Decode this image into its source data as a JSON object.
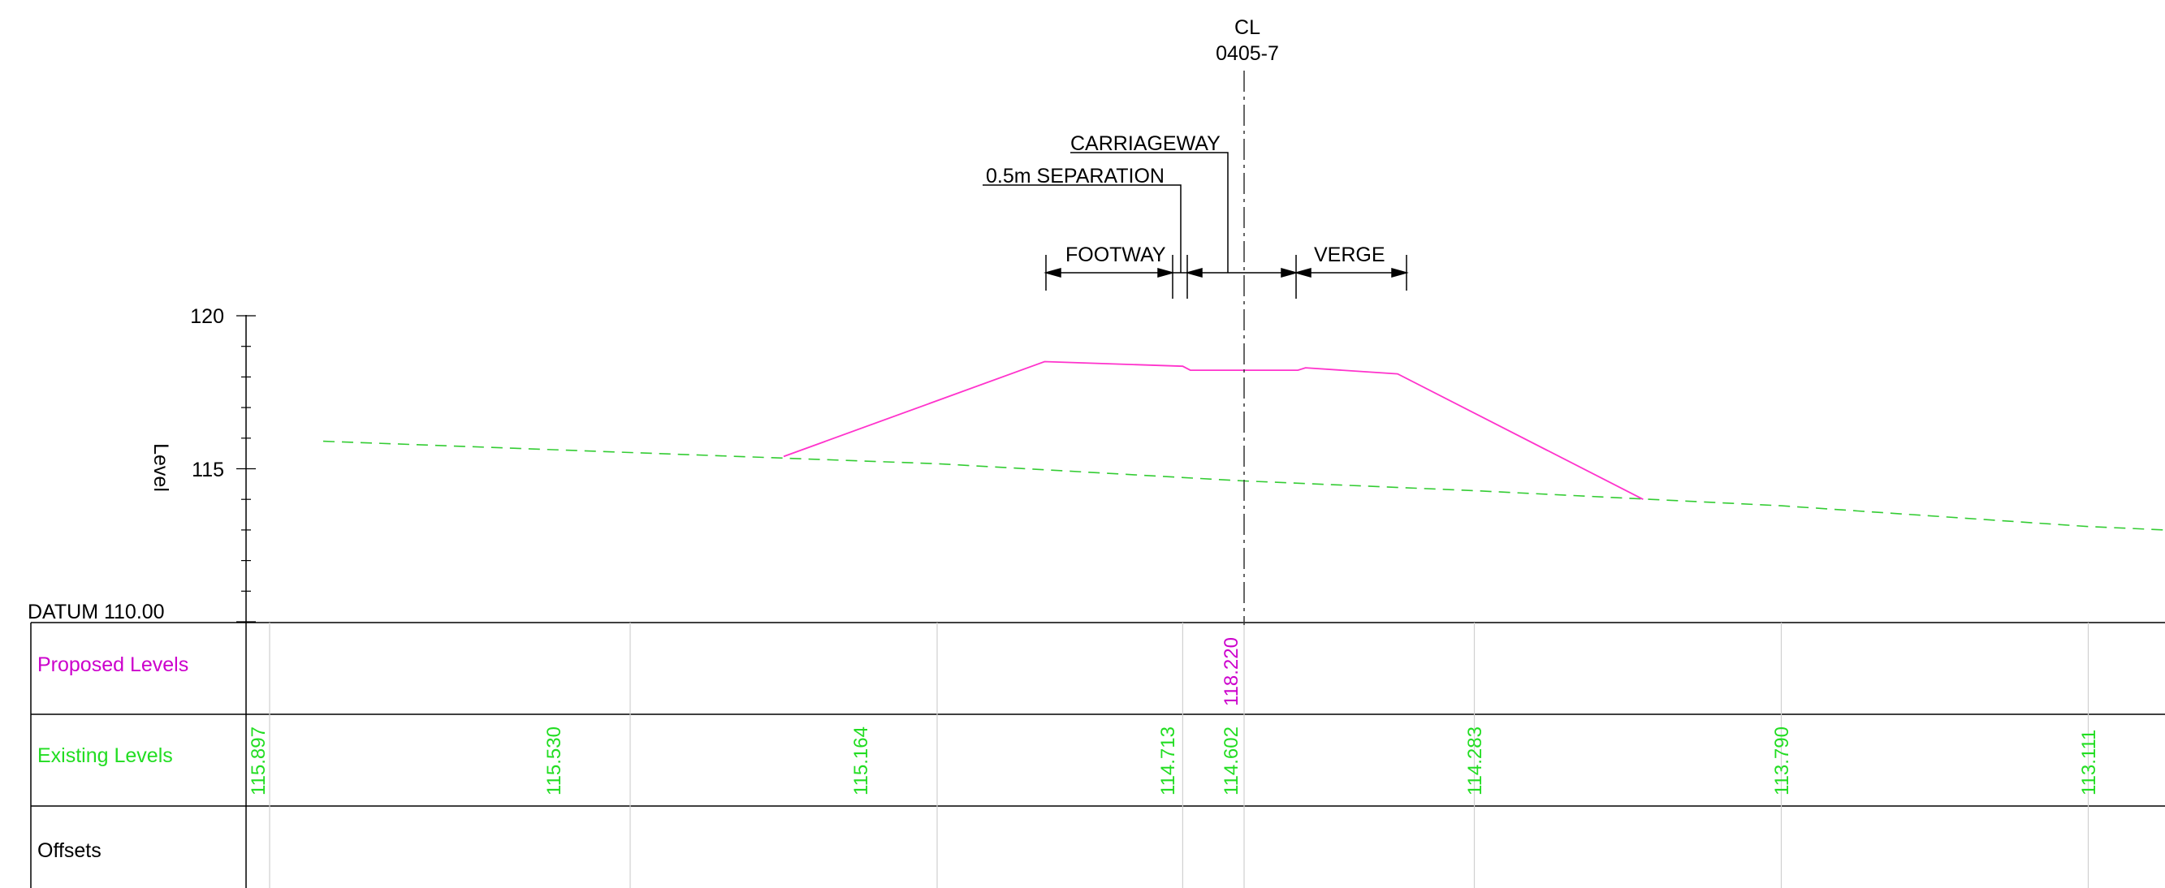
{
  "centreline": {
    "label": "CL",
    "chainage": "0405-7"
  },
  "annotations": {
    "carriageway": "CARRIAGEWAY",
    "separation": "0.5m SEPARATION",
    "footway": "FOOTWAY",
    "verge": "VERGE"
  },
  "axis": {
    "title": "Level",
    "tick_120": "120",
    "tick_115": "115",
    "datum": "DATUM 110.00"
  },
  "band": {
    "proposed_label": "Proposed Levels",
    "existing_label": "Existing Levels",
    "offsets_label": "Offsets",
    "proposed_values": [
      "118.220"
    ],
    "existing_values": [
      "115.897",
      "115.530",
      "115.164",
      "114.713",
      "114.602",
      "114.283",
      "113.790",
      "113.111"
    ]
  },
  "colors": {
    "proposed": "#ff33cc",
    "proposed_text": "#cc00cc",
    "existing": "#33cc33",
    "existing_text": "#22dd22",
    "line": "#000000",
    "grid": "#d0d0d0"
  },
  "chart_data": {
    "type": "line",
    "ylabel": "Level",
    "ylim": [
      110,
      120
    ],
    "series": [
      {
        "name": "Proposed Levels",
        "points": [
          [
            -15.0,
            115.4
          ],
          [
            -6.5,
            118.5
          ],
          [
            -2.0,
            118.35
          ],
          [
            -1.75,
            118.22
          ],
          [
            1.75,
            118.22
          ],
          [
            2.0,
            118.3
          ],
          [
            5.0,
            118.1
          ],
          [
            13.0,
            114.0
          ]
        ]
      },
      {
        "name": "Existing Levels",
        "points": [
          [
            -30.0,
            115.9
          ],
          [
            -20.0,
            115.53
          ],
          [
            -10.0,
            115.164
          ],
          [
            -2.0,
            114.713
          ],
          [
            0.0,
            114.602
          ],
          [
            7.5,
            114.283
          ],
          [
            17.5,
            113.79
          ],
          [
            27.5,
            113.111
          ],
          [
            30.0,
            113.0
          ]
        ]
      }
    ]
  }
}
